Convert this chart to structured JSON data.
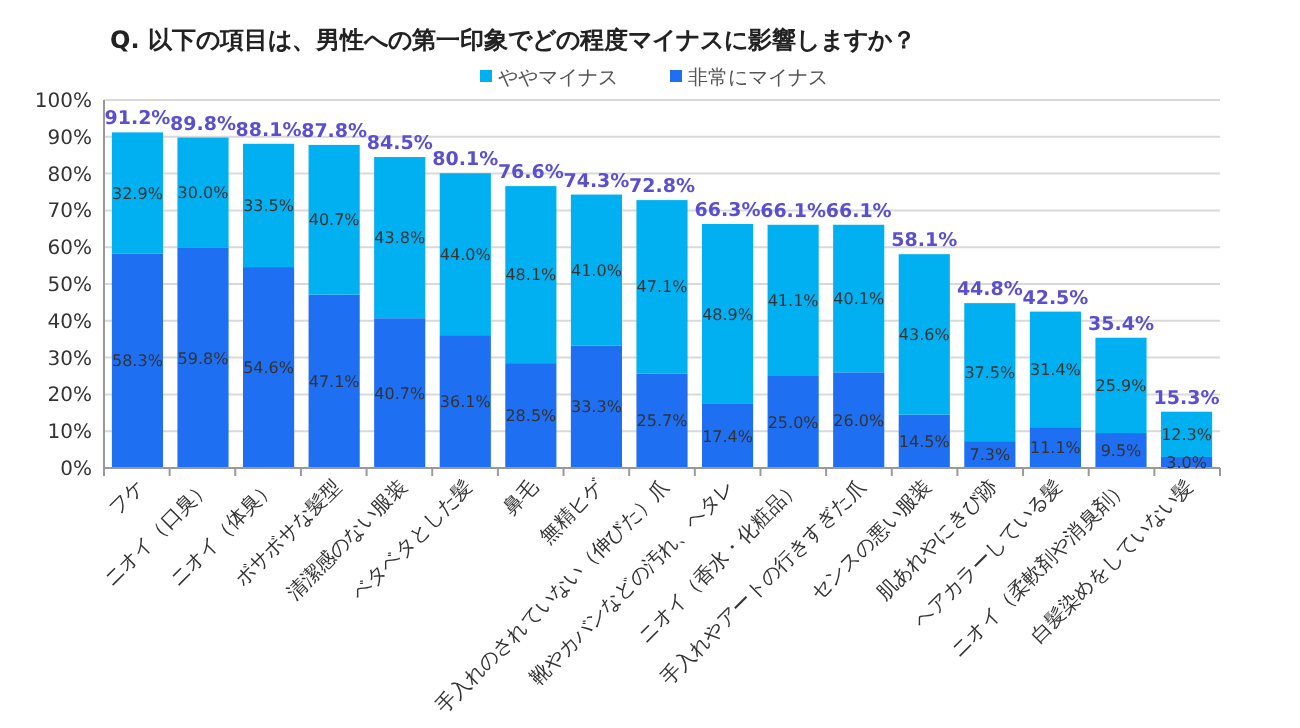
{
  "chart_data": {
    "type": "bar",
    "stacked": true,
    "title": "Q. 以下の項目は、男性への第一印象でどの程度マイナスに影響しますか？",
    "categories": [
      "フケ",
      "ニオイ（口臭）",
      "ニオイ（体臭）",
      "ボサボサな髪型",
      "清潔感のない服装",
      "ベタベタとした髪",
      "鼻毛",
      "無精ヒゲ",
      "手入れのされていない（伸びた）爪",
      "靴やカバンなどの汚れ、ヘタレ",
      "ニオイ（香水・化粧品）",
      "手入れやアートの行きすぎた爪",
      "センスの悪い服装",
      "肌あれやにきび跡",
      "ヘアカラーしている髪",
      "ニオイ（柔軟剤や消臭剤）",
      "白髪染めをしていない髪"
    ],
    "series": [
      {
        "name": "非常にマイナス",
        "color": "#1f6ff2",
        "values": [
          58.3,
          59.8,
          54.6,
          47.1,
          40.7,
          36.1,
          28.5,
          33.3,
          25.7,
          17.4,
          25.0,
          26.0,
          14.5,
          7.3,
          11.1,
          9.5,
          3.0
        ],
        "value_labels": [
          "58.3%",
          "59.8%",
          "54.6%",
          "47.1%",
          "40.7%",
          "36.1%",
          "28.5%",
          "33.3%",
          "25.7%",
          "17.4%",
          "25.0%",
          "26.0%",
          "14.5%",
          "7.3%",
          "11.1%",
          "9.5%",
          "3.0%"
        ]
      },
      {
        "name": "ややマイナス",
        "color": "#00b0f0",
        "values": [
          32.9,
          30.0,
          33.5,
          40.7,
          43.8,
          44.0,
          48.1,
          41.0,
          47.1,
          48.9,
          41.1,
          40.1,
          43.6,
          37.5,
          31.4,
          25.9,
          12.3
        ],
        "value_labels": [
          "32.9%",
          "30.0%",
          "33.5%",
          "40.7%",
          "43.8%",
          "44.0%",
          "48.1%",
          "41.0%",
          "47.1%",
          "48.9%",
          "41.1%",
          "40.1%",
          "43.6%",
          "37.5%",
          "31.4%",
          "25.9%",
          "12.3%"
        ]
      }
    ],
    "totals": [
      "91.2%",
      "89.8%",
      "88.1%",
      "87.8%",
      "84.5%",
      "80.1%",
      "76.6%",
      "74.3%",
      "72.8%",
      "66.3%",
      "66.1%",
      "66.1%",
      "58.1%",
      "44.8%",
      "42.5%",
      "35.4%",
      "15.3%"
    ],
    "ylim": [
      0,
      100
    ],
    "yticks": [
      {
        "value": 0,
        "label": "0%"
      },
      {
        "value": 10,
        "label": "10%"
      },
      {
        "value": 20,
        "label": "20%"
      },
      {
        "value": 30,
        "label": "30%"
      },
      {
        "value": 40,
        "label": "40%"
      },
      {
        "value": 50,
        "label": "50%"
      },
      {
        "value": 60,
        "label": "60%"
      },
      {
        "value": 70,
        "label": "70%"
      },
      {
        "value": 80,
        "label": "80%"
      },
      {
        "value": 90,
        "label": "90%"
      },
      {
        "value": 100,
        "label": "100%"
      }
    ],
    "grid": "y",
    "legend": "top"
  }
}
